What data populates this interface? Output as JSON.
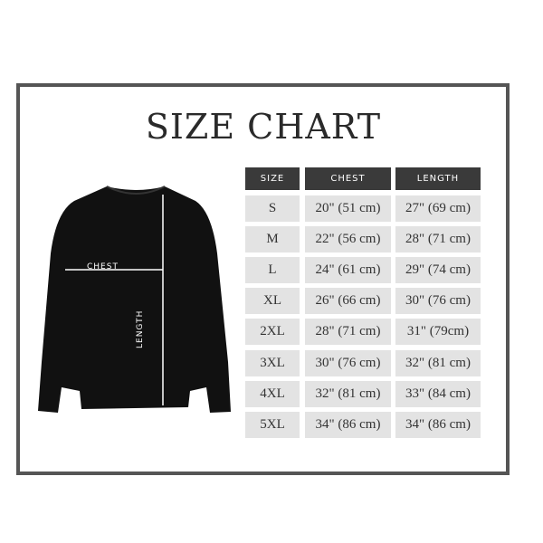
{
  "title": "SIZE CHART",
  "diagram": {
    "chest_label": "CHEST",
    "length_label": "LENGTH",
    "garment_color": "#111111"
  },
  "table": {
    "headers": [
      "SIZE",
      "CHEST",
      "LENGTH"
    ],
    "rows": [
      [
        "S",
        "20\" (51 cm)",
        "27\" (69 cm)"
      ],
      [
        "M",
        "22\" (56 cm)",
        "28\" (71 cm)"
      ],
      [
        "L",
        "24\" (61 cm)",
        "29\" (74 cm)"
      ],
      [
        "XL",
        "26\" (66 cm)",
        "30\" (76 cm)"
      ],
      [
        "2XL",
        "28\" (71 cm)",
        "31\" (79cm)"
      ],
      [
        "3XL",
        "30\" (76 cm)",
        "32\" (81 cm)"
      ],
      [
        "4XL",
        "32\" (81 cm)",
        "33\" (84 cm)"
      ],
      [
        "5XL",
        "34\" (86 cm)",
        "34\" (86 cm)"
      ]
    ]
  }
}
